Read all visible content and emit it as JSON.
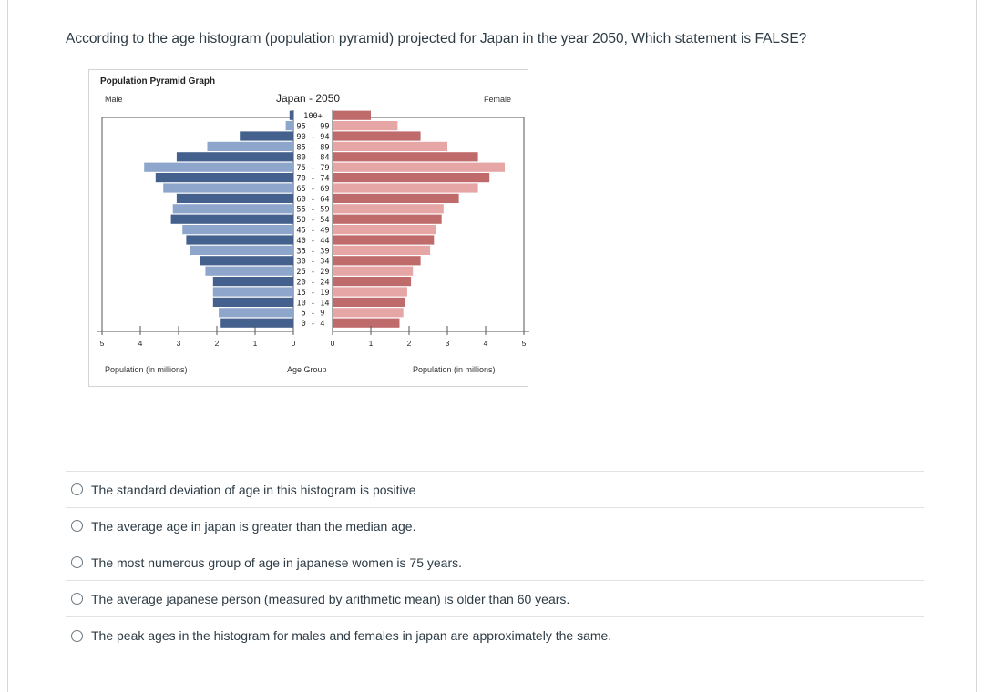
{
  "question": {
    "text": "According to the age histogram (population pyramid) projected for Japan in the year 2050, Which statement is FALSE?"
  },
  "chart_data": {
    "type": "bar",
    "header": "Population Pyramid Graph",
    "title": "Japan - 2050",
    "left_label": "Male",
    "right_label": "Female",
    "xlabel_left": "Population (in millions)",
    "xlabel_center": "Age Group",
    "xlabel_right": "Population (in millions)",
    "xlim": [
      0,
      5
    ],
    "ticks_left": [
      "5",
      "4",
      "3",
      "2",
      "1",
      "0"
    ],
    "ticks_right": [
      "0",
      "1",
      "2",
      "3",
      "4",
      "5"
    ],
    "categories": [
      "100+",
      "95 - 99",
      "90 - 94",
      "85 - 89",
      "80 - 84",
      "75 - 79",
      "70 - 74",
      "65 - 69",
      "60 - 64",
      "55 - 59",
      "50 - 54",
      "45 - 49",
      "40 - 44",
      "35 - 39",
      "30 - 34",
      "25 - 29",
      "20 - 24",
      "15 - 19",
      "10 - 14",
      "5 - 9",
      "0 - 4"
    ],
    "series": [
      {
        "name": "Male",
        "values": [
          0.1,
          0.2,
          1.4,
          2.25,
          3.05,
          3.9,
          3.6,
          3.4,
          3.05,
          3.15,
          3.2,
          2.9,
          2.8,
          2.7,
          2.45,
          2.3,
          2.1,
          2.1,
          2.1,
          1.95,
          1.9
        ]
      },
      {
        "name": "Female",
        "values": [
          1.0,
          1.7,
          2.3,
          3.0,
          3.8,
          4.5,
          4.1,
          3.8,
          3.3,
          2.9,
          2.85,
          2.7,
          2.65,
          2.55,
          2.3,
          2.1,
          2.05,
          1.95,
          1.9,
          1.85,
          1.75
        ]
      }
    ],
    "colors": {
      "male_dark": "#44618e",
      "male_light": "#8fa6cc",
      "female_dark": "#bf6b6b",
      "female_light": "#e6a6a6"
    }
  },
  "answers": [
    {
      "label": "The standard deviation of age in this histogram is positive"
    },
    {
      "label": "The average age in japan is greater than the median age."
    },
    {
      "label": "The most numerous group of age in japanese women is 75 years."
    },
    {
      "label": "The average japanese person (measured by arithmetic mean) is older than 60 years."
    },
    {
      "label": "The peak ages in the histogram for males and females in japan are approximately the same."
    }
  ]
}
